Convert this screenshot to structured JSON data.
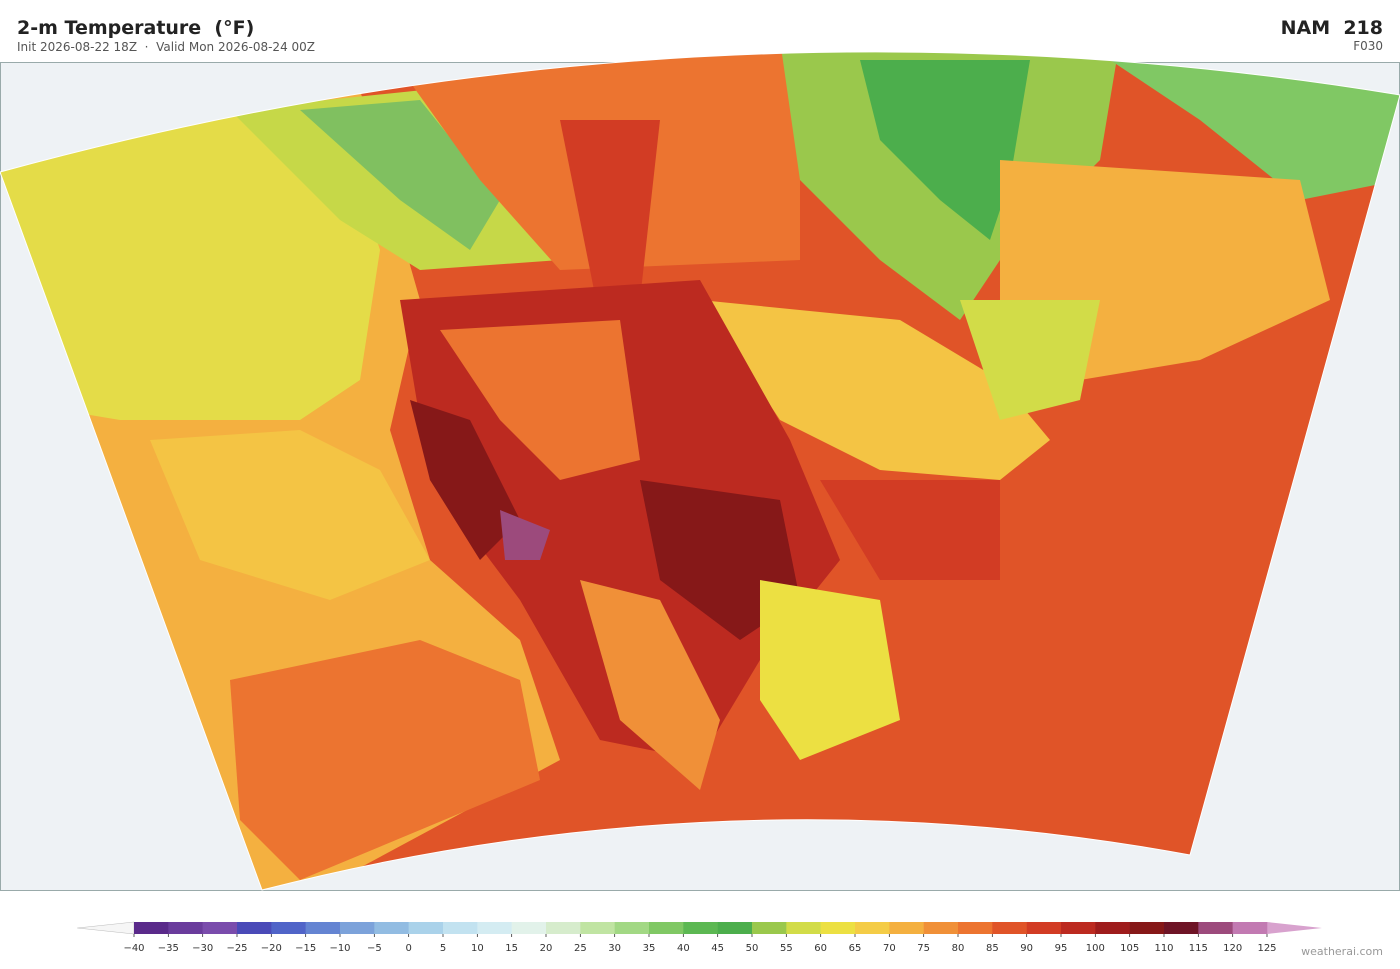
{
  "header": {
    "title": "2-m Temperature  (°F)",
    "subtitle": "Init 2026-08-22 18Z  ·  Valid Mon 2026-08-24 00Z",
    "model": "NAM  218",
    "forecast_hour": "F030"
  },
  "colorbar": {
    "ticks": [
      {
        "value": -40,
        "label": "−40"
      },
      {
        "value": -35,
        "label": "−35"
      },
      {
        "value": -30,
        "label": "−30"
      },
      {
        "value": -25,
        "label": "−25"
      },
      {
        "value": -20,
        "label": "−20"
      },
      {
        "value": -15,
        "label": "−15"
      },
      {
        "value": -10,
        "label": "−10"
      },
      {
        "value": -5,
        "label": "−5"
      },
      0,
      5,
      10,
      15,
      20,
      25,
      30,
      35,
      40,
      45,
      50,
      55,
      60,
      65,
      70,
      75,
      80,
      85,
      90,
      95,
      100,
      105,
      110,
      115,
      120,
      125
    ],
    "colors": [
      "#5a2a8a",
      "#6a3c9c",
      "#7a4cac",
      "#4a4ab8",
      "#5064c8",
      "#6484d2",
      "#7ca2da",
      "#92bce2",
      "#aad2ea",
      "#c2e2f0",
      "#d4ecf2",
      "#e2f2ea",
      "#d6eccc",
      "#c0e4a2",
      "#a2d884",
      "#80c864",
      "#5cb852",
      "#4cae4c",
      "#9ac84c",
      "#d2dc48",
      "#ece042",
      "#f4cc46",
      "#f4b040",
      "#f09038",
      "#ec7430",
      "#e05428",
      "#d23c24",
      "#bc2a20",
      "#9e1c1c",
      "#861818",
      "#6e1426",
      "#9c4a7c",
      "#c27ab2"
    ],
    "extend_colors": [
      "#f6f6f6",
      "#d8a2ce"
    ]
  },
  "footer": {
    "credit": "weatherai.com"
  }
}
